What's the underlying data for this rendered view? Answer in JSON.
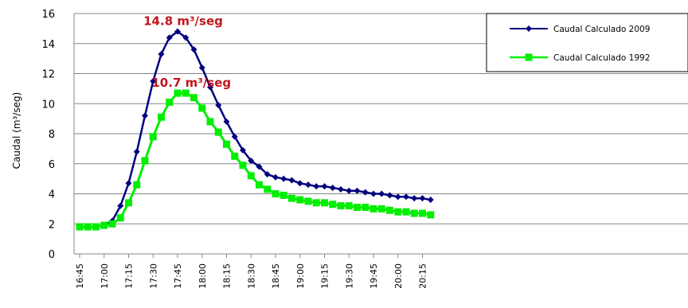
{
  "chart_data": {
    "type": "line",
    "ylabel": "Caudal (m³/seg)",
    "xlabel": "",
    "ylim": [
      0,
      16
    ],
    "y_ticks": [
      0,
      2,
      4,
      6,
      8,
      10,
      12,
      14,
      16
    ],
    "x_tick_labels": [
      "16:45",
      "17:00",
      "17:15",
      "17:30",
      "17:45",
      "18:00",
      "18:15",
      "18:30",
      "18:45",
      "19:00",
      "19:15",
      "19:30",
      "19:45",
      "20:00",
      "20:15"
    ],
    "x": [
      "16:45",
      "16:50",
      "16:55",
      "17:00",
      "17:05",
      "17:10",
      "17:15",
      "17:20",
      "17:25",
      "17:30",
      "17:35",
      "17:40",
      "17:45",
      "17:50",
      "17:55",
      "18:00",
      "18:05",
      "18:10",
      "18:15",
      "18:20",
      "18:25",
      "18:30",
      "18:35",
      "18:40",
      "18:45",
      "18:50",
      "18:55",
      "19:00",
      "19:05",
      "19:10",
      "19:15",
      "19:20",
      "19:25",
      "19:30",
      "19:35",
      "19:40",
      "19:45",
      "19:50",
      "19:55",
      "20:00",
      "20:05",
      "20:10",
      "20:15",
      "20:20"
    ],
    "grid": "horizontal",
    "legend_position": "top-right",
    "series": [
      {
        "name": "Caudal Calculado 2009",
        "color": "#000080",
        "marker": "diamond",
        "values": [
          1.8,
          1.8,
          1.8,
          1.9,
          2.2,
          3.2,
          4.7,
          6.8,
          9.2,
          11.5,
          13.3,
          14.4,
          14.8,
          14.4,
          13.6,
          12.4,
          11.1,
          9.9,
          8.8,
          7.8,
          6.9,
          6.2,
          5.8,
          5.3,
          5.1,
          5.0,
          4.9,
          4.7,
          4.6,
          4.5,
          4.5,
          4.4,
          4.3,
          4.2,
          4.2,
          4.1,
          4.0,
          4.0,
          3.9,
          3.8,
          3.8,
          3.7,
          3.7,
          3.6
        ]
      },
      {
        "name": "Caudal Calculado 1992",
        "color": "#00ee00",
        "marker": "square",
        "values": [
          1.8,
          1.8,
          1.8,
          1.9,
          2.0,
          2.4,
          3.4,
          4.6,
          6.2,
          7.8,
          9.1,
          10.1,
          10.7,
          10.7,
          10.4,
          9.7,
          8.8,
          8.1,
          7.3,
          6.5,
          5.9,
          5.2,
          4.6,
          4.3,
          4.0,
          3.9,
          3.7,
          3.6,
          3.5,
          3.4,
          3.4,
          3.3,
          3.2,
          3.2,
          3.1,
          3.1,
          3.0,
          3.0,
          2.9,
          2.8,
          2.8,
          2.7,
          2.7,
          2.6
        ]
      }
    ],
    "annotations": [
      {
        "text": "14.8 m³/seg",
        "series": 0,
        "index": 12
      },
      {
        "text": "10.7 m³/seg",
        "series": 1,
        "index": 13
      }
    ]
  }
}
